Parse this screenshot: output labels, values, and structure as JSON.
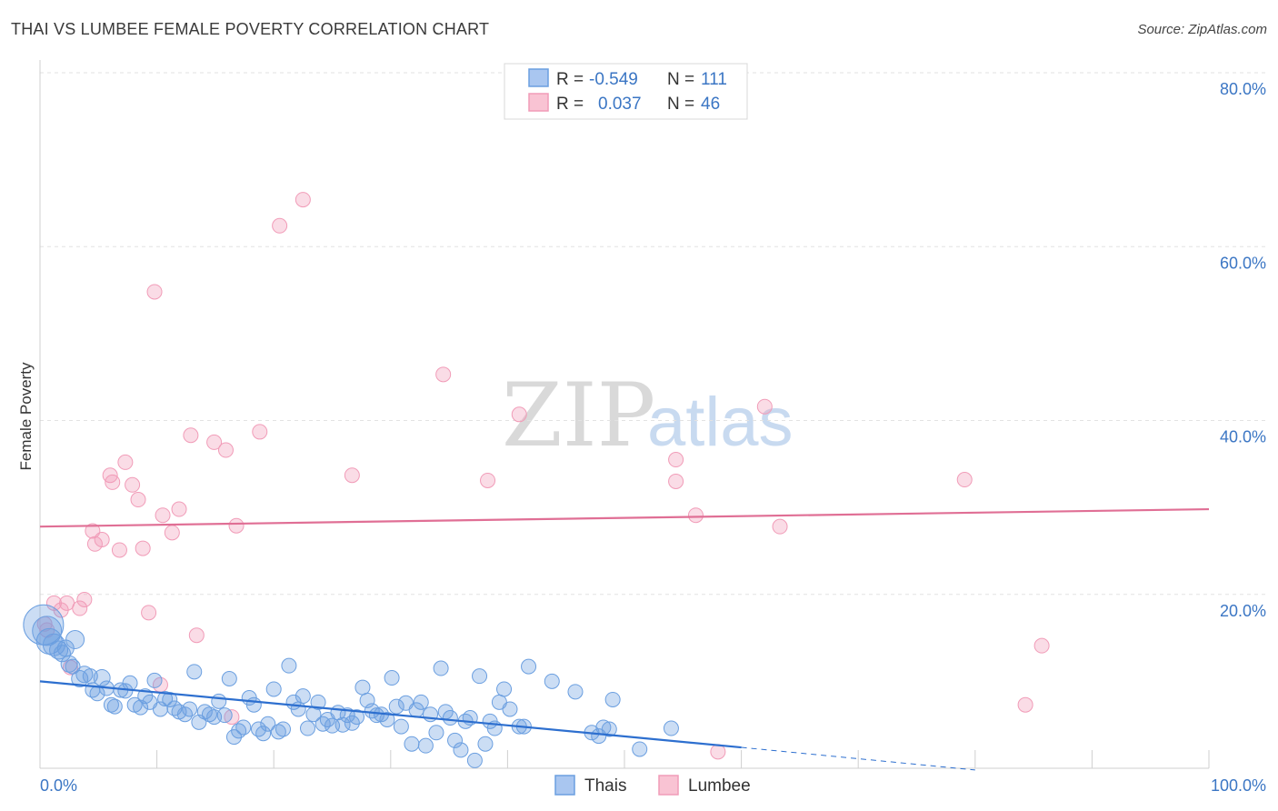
{
  "title": "THAI VS LUMBEE FEMALE POVERTY CORRELATION CHART",
  "source": "Source: ZipAtlas.com",
  "colors": {
    "thai": "#6b9fe0",
    "thai_line": "#2d6fcf",
    "lumbee": "#f19cb8",
    "lumbee_line": "#e06f95",
    "axis_text": "#3b76c4"
  },
  "legend": {
    "rows": [
      {
        "r_label": "R = ",
        "r_value": "-0.549",
        "n_label": "N = ",
        "n_value": "111"
      },
      {
        "r_label": "R = ",
        "r_value": "0.037",
        "n_label": "N = ",
        "n_value": "46"
      }
    ]
  },
  "watermark": {
    "part1": "ZIP",
    "part2": "atlas"
  },
  "chart_data": {
    "type": "scatter",
    "xlabel": "",
    "ylabel": "Female Poverty",
    "xlim": [
      0,
      100
    ],
    "ylim": [
      0,
      80
    ],
    "x_tick_labels": [
      "0.0%",
      "100.0%"
    ],
    "y_ticks": [
      20,
      40,
      60,
      80
    ],
    "y_tick_labels": [
      "20.0%",
      "40.0%",
      "60.0%",
      "80.0%"
    ],
    "grid": true,
    "legend_position": "bottom",
    "series": [
      {
        "name": "Thais",
        "color": "#6b9fe0",
        "trend": {
          "x1": 0,
          "y1": 10.0,
          "x2": 60,
          "y2": 2.4,
          "dash_to_x": 80,
          "dash_to_y": -0.2
        },
        "points": [
          [
            0.3,
            16.5,
            22
          ],
          [
            0.6,
            15.8,
            16
          ],
          [
            0.8,
            14.6,
            14
          ],
          [
            1.2,
            14.2,
            12
          ],
          [
            1.6,
            13.6,
            10
          ],
          [
            1.9,
            13.2,
            9
          ],
          [
            2.2,
            13.8,
            9
          ],
          [
            3.0,
            14.8,
            10
          ],
          [
            2.5,
            12.0,
            9
          ],
          [
            2.8,
            11.7,
            8
          ],
          [
            3.4,
            10.3,
            9
          ],
          [
            3.8,
            10.8,
            9
          ],
          [
            4.3,
            10.6,
            8
          ],
          [
            4.5,
            9.0,
            8
          ],
          [
            4.9,
            8.6,
            8
          ],
          [
            5.3,
            10.4,
            9
          ],
          [
            5.7,
            9.2,
            8
          ],
          [
            6.1,
            7.3,
            8
          ],
          [
            6.4,
            7.1,
            8
          ],
          [
            6.9,
            9.0,
            8
          ],
          [
            7.3,
            8.9,
            8
          ],
          [
            7.7,
            9.8,
            8
          ],
          [
            8.1,
            7.3,
            8
          ],
          [
            8.6,
            7.0,
            8
          ],
          [
            9.0,
            8.3,
            8
          ],
          [
            9.4,
            7.6,
            8
          ],
          [
            9.8,
            10.1,
            8
          ],
          [
            10.3,
            6.8,
            8
          ],
          [
            10.7,
            8.0,
            8
          ],
          [
            11.1,
            7.9,
            8
          ],
          [
            11.5,
            6.9,
            8
          ],
          [
            11.9,
            6.5,
            8
          ],
          [
            12.4,
            6.2,
            8
          ],
          [
            12.8,
            6.8,
            8
          ],
          [
            13.2,
            11.1,
            8
          ],
          [
            13.6,
            5.3,
            8
          ],
          [
            14.1,
            6.5,
            8
          ],
          [
            14.5,
            6.2,
            8
          ],
          [
            14.9,
            5.9,
            8
          ],
          [
            15.3,
            7.7,
            8
          ],
          [
            15.8,
            6.1,
            8
          ],
          [
            16.2,
            10.3,
            8
          ],
          [
            16.6,
            3.6,
            8
          ],
          [
            17.0,
            4.3,
            8
          ],
          [
            17.4,
            4.7,
            8
          ],
          [
            17.9,
            8.1,
            8
          ],
          [
            18.3,
            7.3,
            8
          ],
          [
            18.7,
            4.5,
            8
          ],
          [
            19.1,
            4.0,
            8
          ],
          [
            19.5,
            5.1,
            8
          ],
          [
            20.0,
            9.1,
            8
          ],
          [
            20.4,
            4.2,
            8
          ],
          [
            20.8,
            4.5,
            8
          ],
          [
            21.3,
            11.8,
            8
          ],
          [
            21.7,
            7.6,
            8
          ],
          [
            22.1,
            6.8,
            8
          ],
          [
            22.5,
            8.3,
            8
          ],
          [
            22.9,
            4.6,
            8
          ],
          [
            23.4,
            6.2,
            8
          ],
          [
            23.8,
            7.6,
            8
          ],
          [
            24.2,
            5.1,
            8
          ],
          [
            24.6,
            5.6,
            8
          ],
          [
            25.0,
            4.9,
            8
          ],
          [
            25.5,
            6.4,
            8
          ],
          [
            25.9,
            5.0,
            8
          ],
          [
            26.3,
            6.1,
            8
          ],
          [
            26.7,
            5.2,
            8
          ],
          [
            27.1,
            5.9,
            8
          ],
          [
            27.6,
            9.3,
            8
          ],
          [
            28.0,
            7.8,
            8
          ],
          [
            28.4,
            6.6,
            8
          ],
          [
            28.8,
            6.1,
            8
          ],
          [
            29.2,
            6.2,
            8
          ],
          [
            29.7,
            5.6,
            8
          ],
          [
            30.1,
            10.4,
            8
          ],
          [
            30.5,
            7.1,
            8
          ],
          [
            30.9,
            4.8,
            8
          ],
          [
            31.3,
            7.5,
            8
          ],
          [
            31.8,
            2.8,
            8
          ],
          [
            32.2,
            6.7,
            8
          ],
          [
            32.6,
            7.6,
            8
          ],
          [
            33.0,
            2.6,
            8
          ],
          [
            33.4,
            6.2,
            8
          ],
          [
            33.9,
            4.1,
            8
          ],
          [
            34.3,
            11.5,
            8
          ],
          [
            34.7,
            6.5,
            8
          ],
          [
            35.1,
            5.8,
            8
          ],
          [
            35.5,
            3.2,
            8
          ],
          [
            36.0,
            2.1,
            8
          ],
          [
            36.4,
            5.4,
            8
          ],
          [
            36.8,
            5.8,
            8
          ],
          [
            37.2,
            0.9,
            8
          ],
          [
            37.6,
            10.6,
            8
          ],
          [
            38.1,
            2.8,
            8
          ],
          [
            38.5,
            5.4,
            8
          ],
          [
            38.9,
            4.6,
            8
          ],
          [
            39.3,
            7.6,
            8
          ],
          [
            39.7,
            9.1,
            8
          ],
          [
            40.2,
            6.8,
            8
          ],
          [
            41.0,
            4.8,
            8
          ],
          [
            41.4,
            4.8,
            8
          ],
          [
            41.8,
            11.7,
            8
          ],
          [
            43.8,
            10.0,
            8
          ],
          [
            45.8,
            8.8,
            8
          ],
          [
            47.2,
            4.1,
            8
          ],
          [
            47.8,
            3.7,
            8
          ],
          [
            48.2,
            4.7,
            8
          ],
          [
            48.7,
            4.5,
            8
          ],
          [
            49.0,
            7.9,
            8
          ],
          [
            51.3,
            2.2,
            8
          ],
          [
            54.0,
            4.6,
            8
          ]
        ]
      },
      {
        "name": "Lumbee",
        "color": "#f19cb8",
        "trend": {
          "x1": 0,
          "y1": 27.8,
          "x2": 100,
          "y2": 29.8
        },
        "points": [
          [
            0.4,
            16.6,
            8
          ],
          [
            0.6,
            15.9,
            8
          ],
          [
            1.2,
            19.0,
            8
          ],
          [
            1.8,
            18.2,
            8
          ],
          [
            2.3,
            19.0,
            8
          ],
          [
            2.6,
            11.6,
            8
          ],
          [
            3.4,
            18.4,
            8
          ],
          [
            3.8,
            19.4,
            8
          ],
          [
            4.5,
            27.3,
            8
          ],
          [
            4.7,
            25.8,
            8
          ],
          [
            5.3,
            26.3,
            8
          ],
          [
            6.0,
            33.7,
            8
          ],
          [
            6.2,
            32.9,
            8
          ],
          [
            6.8,
            25.1,
            8
          ],
          [
            7.3,
            35.2,
            8
          ],
          [
            7.9,
            32.6,
            8
          ],
          [
            8.4,
            30.9,
            8
          ],
          [
            8.8,
            25.3,
            8
          ],
          [
            9.3,
            17.9,
            8
          ],
          [
            9.8,
            54.8,
            8
          ],
          [
            10.3,
            9.6,
            8
          ],
          [
            10.5,
            29.1,
            8
          ],
          [
            11.3,
            27.1,
            8
          ],
          [
            11.9,
            29.8,
            8
          ],
          [
            12.9,
            38.3,
            8
          ],
          [
            13.4,
            15.3,
            8
          ],
          [
            14.9,
            37.5,
            8
          ],
          [
            15.9,
            36.6,
            8
          ],
          [
            16.4,
            5.9,
            8
          ],
          [
            16.8,
            27.9,
            8
          ],
          [
            18.8,
            38.7,
            8
          ],
          [
            20.5,
            62.4,
            8
          ],
          [
            22.5,
            65.4,
            8
          ],
          [
            26.7,
            33.7,
            8
          ],
          [
            34.5,
            45.3,
            8
          ],
          [
            38.3,
            33.1,
            8
          ],
          [
            41.0,
            40.7,
            8
          ],
          [
            54.4,
            35.5,
            8
          ],
          [
            54.4,
            33.0,
            8
          ],
          [
            56.1,
            29.1,
            8
          ],
          [
            58.0,
            1.9,
            8
          ],
          [
            62.0,
            41.6,
            8
          ],
          [
            63.3,
            27.8,
            8
          ],
          [
            79.1,
            33.2,
            8
          ],
          [
            84.3,
            7.3,
            8
          ],
          [
            85.7,
            14.1,
            8
          ]
        ]
      }
    ]
  },
  "bottom_legend": {
    "items": [
      "Thais",
      "Lumbee"
    ]
  }
}
